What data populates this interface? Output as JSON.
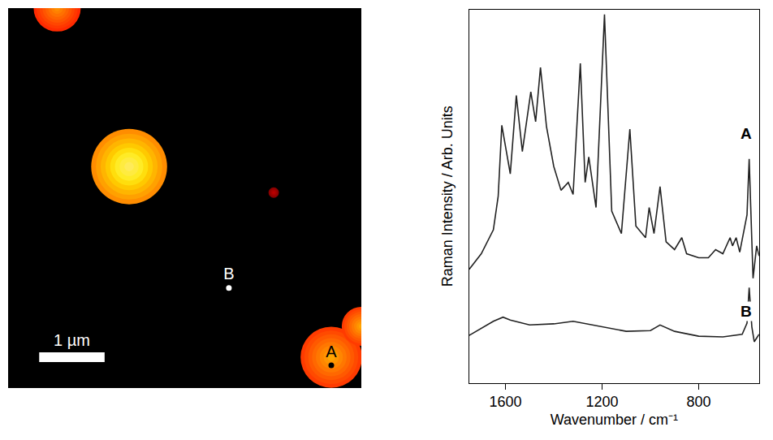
{
  "chart_data": [
    {
      "type": "map",
      "xlim": [
        0,
        5.4
      ],
      "ylim": [
        5.85,
        0
      ],
      "tick_labels": false,
      "spots": [
        {
          "x": 0.75,
          "y": 0,
          "r": 0.36,
          "intensity": 0.7
        },
        {
          "x": 1.85,
          "y": 2.44,
          "r": 0.58,
          "intensity": 1.0
        },
        {
          "x": 4.06,
          "y": 2.84,
          "r": 0.08,
          "intensity": 0.3
        },
        {
          "x": 4.94,
          "y": 5.375,
          "r": 0.47,
          "intensity": 0.75
        },
        {
          "x": 5.4,
          "y": 4.9,
          "r": 0.3,
          "intensity": 0.75
        }
      ],
      "points": [
        {
          "label": "A",
          "x": 4.94,
          "y": 5.5,
          "color": "#000000"
        },
        {
          "label": "B",
          "x": 3.375,
          "y": 4.31,
          "color": "#ffffff"
        }
      ],
      "scale_bar": {
        "length": 1,
        "label": "1 µm"
      }
    },
    {
      "type": "line",
      "x_label": "Wavenumber / cm⁻¹",
      "y_label": "Raman Intensity / Arb. Units",
      "xlim": [
        1750,
        550
      ],
      "xticks": [
        1600,
        1200,
        800
      ],
      "ylim": [
        0,
        100
      ],
      "yticks": [],
      "tick_labels": "x",
      "grid": false,
      "series": [
        {
          "name": "A",
          "color": "#222222",
          "x": [
            1750,
            1700,
            1650,
            1630,
            1615,
            1580,
            1555,
            1530,
            1495,
            1475,
            1455,
            1430,
            1400,
            1370,
            1340,
            1320,
            1290,
            1270,
            1255,
            1225,
            1190,
            1160,
            1120,
            1085,
            1060,
            1020,
            1005,
            985,
            960,
            935,
            900,
            870,
            850,
            800,
            760,
            730,
            700,
            670,
            660,
            645,
            630,
            600,
            591,
            575,
            560,
            550
          ],
          "values": [
            30.4,
            34.6,
            41,
            50,
            69,
            56,
            77,
            62,
            78,
            70,
            84.5,
            68.6,
            58,
            51.6,
            53.7,
            50.5,
            85.6,
            53.7,
            60.5,
            47,
            98.7,
            46,
            40,
            68,
            42,
            38.9,
            47,
            40,
            52.6,
            37.8,
            35.7,
            38.9,
            34.6,
            33.5,
            33.5,
            35.7,
            34.6,
            38.9,
            36.7,
            38.9,
            35,
            45,
            60,
            28,
            36.7,
            34
          ]
        },
        {
          "name": "B",
          "color": "#222222",
          "x": [
            1750,
            1700,
            1650,
            1610,
            1580,
            1500,
            1400,
            1320,
            1200,
            1100,
            1000,
            960,
            900,
            800,
            700,
            620,
            600,
            591,
            580,
            570,
            550
          ],
          "values": [
            12.7,
            14.6,
            16.5,
            17.6,
            16.8,
            15.5,
            15.8,
            16.5,
            15,
            13.8,
            14,
            15.5,
            13.8,
            12.5,
            12.3,
            13,
            16,
            25.5,
            15,
            11,
            13
          ]
        }
      ]
    }
  ]
}
